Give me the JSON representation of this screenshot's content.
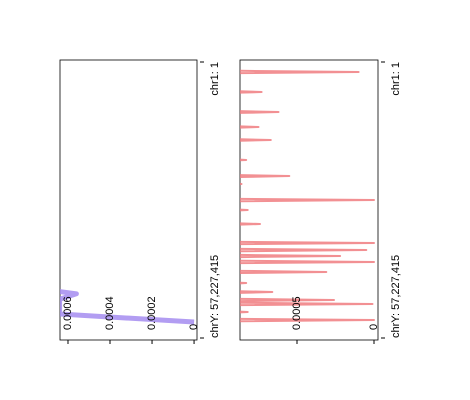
{
  "chart_data": [
    {
      "type": "line",
      "xlim": [
        1,
        3095677412
      ],
      "xticks": [
        {
          "value": 1,
          "label": "chr1: 1"
        },
        {
          "value": 3095677412,
          "label": "chrY: 57,227,415"
        }
      ],
      "ylim": [
        -1.4e-05,
        0.000638
      ],
      "yticks": [
        0,
        0.0002,
        0.0004,
        0.0006
      ],
      "series": [
        {
          "color": "#a48cf0",
          "x": [
            2575000000,
            2600000000,
            2660000000,
            2826000000,
            2916000000
          ],
          "values": [
            0.00064,
            0.00056,
            0.00064,
            0.00064,
            0
          ]
        }
      ]
    },
    {
      "type": "line",
      "xlim": [
        1,
        3095677412
      ],
      "xticks": [
        {
          "value": 1,
          "label": "chr1: 1"
        },
        {
          "value": 3095677412,
          "label": "chrY: 57,227,415"
        }
      ],
      "ylim": [
        -2.6e-05,
        0.00087
      ],
      "yticks": [
        0,
        0.0005
      ],
      "series": [
        {
          "color": "#f07c80",
          "x": [
            97000000,
            112000000,
            127000000,
            321000000,
            336000000,
            351000000,
            546000000,
            561000000,
            576000000,
            714000000,
            729000000,
            744000000,
            860000000,
            875000000,
            890000000,
            1084000000,
            1099000000,
            1114000000,
            1264000000,
            1279000000,
            1294000000,
            1353000000,
            1368000000,
            1383000000,
            1533000000,
            1548000000,
            1563000000,
            1645000000,
            1660000000,
            1675000000,
            1802000000,
            1817000000,
            1832000000,
            2015000000,
            2030000000,
            2045000000,
            2094000000,
            2109000000,
            2124000000,
            2161000000,
            2176000000,
            2191000000,
            2228000000,
            2243000000,
            2258000000,
            2340000000,
            2355000000,
            2370000000,
            2464000000,
            2479000000,
            2494000000,
            2565000000,
            2580000000,
            2595000000,
            2654000000,
            2669000000,
            2684000000,
            2699000000,
            2714000000,
            2729000000,
            2789000000,
            2804000000,
            2819000000,
            2879000000,
            2894000000,
            2909000000
          ],
          "values": [
            0.001,
            0.0001,
            0.001,
            0.001,
            0.00073,
            0.001,
            0.001,
            0.00062,
            0.001,
            0.001,
            0.00075,
            0.001,
            0.001,
            0.00067,
            0.001,
            0.001,
            0.00083,
            0.001,
            0.001,
            0.00055,
            0.001,
            0.001,
            0.00086,
            0.001,
            0.001,
            0,
            0.001,
            0.001,
            0.00082,
            0.001,
            0.001,
            0.00074,
            0.001,
            0.001,
            0,
            0.001,
            0.001,
            5e-05,
            0.001,
            0.001,
            0.00022,
            0.001,
            0.001,
            0,
            0.001,
            0.001,
            0.00031,
            0.001,
            0.001,
            0.00083,
            0.001,
            0.001,
            0.00066,
            0.001,
            0.001,
            0.00026,
            0.001,
            0.001,
            1e-05,
            0.001,
            0.001,
            0.00082,
            0.001,
            0.001,
            0,
            0.001
          ]
        }
      ]
    }
  ]
}
